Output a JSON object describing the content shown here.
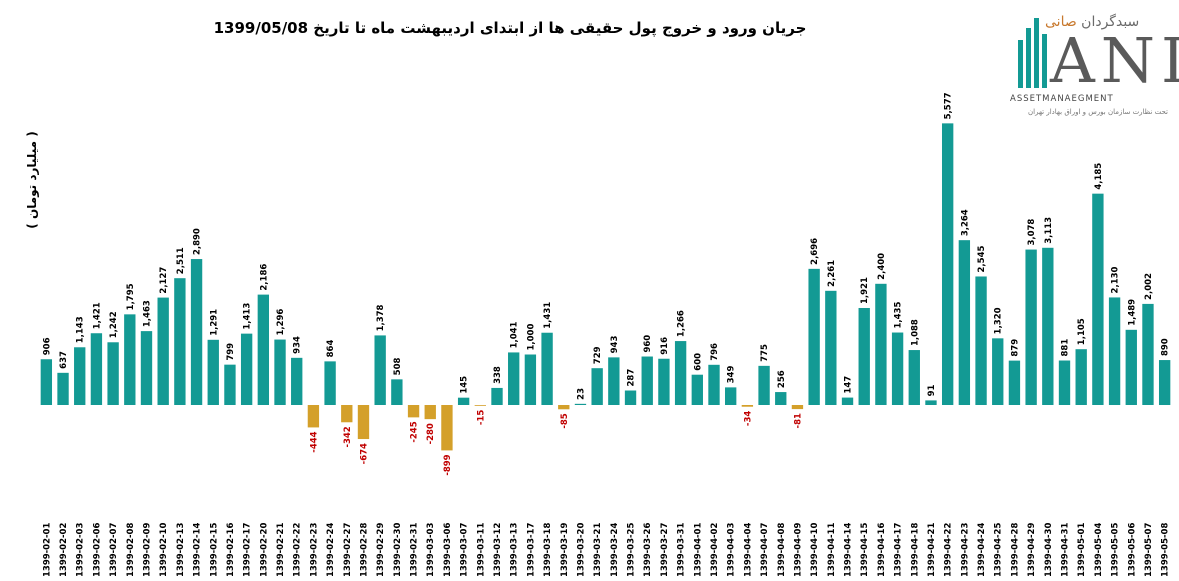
{
  "title": "جریان ورود و خروج پول حقیقی ها از ابتدای اردیبهشت ماه تا تاریخ 1399/05/08",
  "logo": {
    "name_fa_1": "سبدگردان",
    "name_fa_2": "صانی",
    "name_latin": "ANI",
    "tagline": "ASSETMANAEGMENT",
    "subtitle_fa": "تحت نظارت سازمان بورس و اوراق بهادار تهران"
  },
  "colors": {
    "positive": "#139a94",
    "negative": "#d4a02a",
    "negative_label": "#c00000",
    "positive_label": "#000000"
  },
  "chart_data": {
    "type": "bar",
    "ylabel": "( میلیارد تومان )",
    "xlabel": "",
    "ylim": [
      -1500,
      6000
    ],
    "grid": false,
    "legend": "none",
    "categories": [
      "1399-02-01",
      "1399-02-02",
      "1399-02-03",
      "1399-02-06",
      "1399-02-07",
      "1399-02-08",
      "1399-02-09",
      "1399-02-10",
      "1399-02-13",
      "1399-02-14",
      "1399-02-15",
      "1399-02-16",
      "1399-02-17",
      "1399-02-20",
      "1399-02-21",
      "1399-02-22",
      "1399-02-23",
      "1399-02-24",
      "1399-02-27",
      "1399-02-28",
      "1399-02-29",
      "1399-02-30",
      "1399-02-31",
      "1399-03-03",
      "1399-03-06",
      "1399-03-07",
      "1399-03-11",
      "1399-03-12",
      "1399-03-13",
      "1399-03-17",
      "1399-03-18",
      "1399-03-19",
      "1399-03-20",
      "1399-03-21",
      "1399-03-24",
      "1399-03-25",
      "1399-03-26",
      "1399-03-27",
      "1399-03-31",
      "1399-04-01",
      "1399-04-02",
      "1399-04-03",
      "1399-04-04",
      "1399-04-07",
      "1399-04-08",
      "1399-04-09",
      "1399-04-10",
      "1399-04-11",
      "1399-04-14",
      "1399-04-15",
      "1399-04-16",
      "1399-04-17",
      "1399-04-18",
      "1399-04-21",
      "1399-04-22",
      "1399-04-23",
      "1399-04-24",
      "1399-04-25",
      "1399-04-28",
      "1399-04-29",
      "1399-04-30",
      "1399-04-31",
      "1399-05-01",
      "1399-05-04",
      "1399-05-05",
      "1399-05-06",
      "1399-05-07",
      "1399-05-08"
    ],
    "values": [
      906,
      637,
      1143,
      1421,
      1242,
      1795,
      1463,
      2127,
      2511,
      2890,
      1291,
      799,
      1413,
      2186,
      1296,
      934,
      -444,
      864,
      -342,
      -674,
      1378,
      508,
      -245,
      -280,
      -899,
      145,
      -15,
      338,
      1041,
      1000,
      1431,
      -85,
      23,
      729,
      943,
      287,
      960,
      916,
      1266,
      600,
      796,
      349,
      -34,
      775,
      256,
      -81,
      2696,
      2261,
      147,
      1921,
      2400,
      1435,
      1088,
      91,
      5577,
      3264,
      2545,
      1320,
      879,
      3078,
      3113,
      881,
      1105,
      4185,
      2130,
      1489,
      2002,
      890
    ],
    "value_labels": [
      "906",
      "637",
      "1,143",
      "1,421",
      "1,242",
      "1,795",
      "1,463",
      "2,127",
      "2,511",
      "2,890",
      "1,291",
      "799",
      "1,413",
      "2,186",
      "1,296",
      "934",
      "-444",
      "864",
      "-342",
      "-674",
      "1,378",
      "508",
      "-245",
      "-280",
      "-899",
      "145",
      "-15",
      "338",
      "1,041",
      "1,000",
      "1,431",
      "-85",
      "23",
      "729",
      "943",
      "287",
      "960",
      "916",
      "1,266",
      "600",
      "796",
      "349",
      "-34",
      "775",
      "256",
      "-81",
      "2,696",
      "2,261",
      "147",
      "1,921",
      "2,400",
      "1,435",
      "1,088",
      "91",
      "5,577",
      "3,264",
      "2,545",
      "1,320",
      "879",
      "3,078",
      "3,113",
      "881",
      "1,105",
      "4,185",
      "2,130",
      "1,489",
      "2,002",
      "890"
    ]
  }
}
